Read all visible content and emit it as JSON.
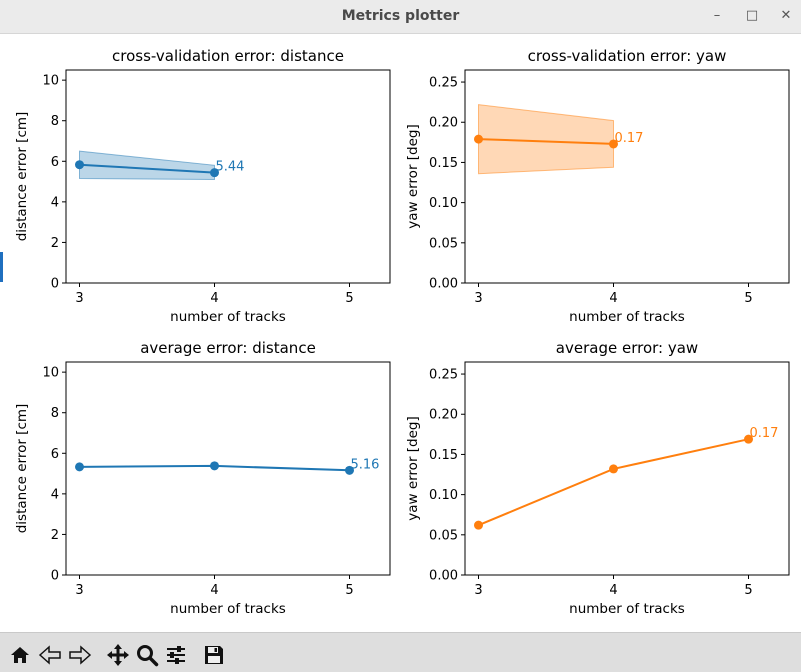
{
  "window": {
    "title": "Metrics plotter",
    "controls": {
      "minimize": "–",
      "maximize": "□",
      "close": "✕"
    }
  },
  "toolbar": {
    "buttons": [
      {
        "name": "home-button",
        "icon": "home-icon"
      },
      {
        "name": "back-button",
        "icon": "back-arrow-icon"
      },
      {
        "name": "forward-button",
        "icon": "forward-arrow-icon"
      },
      {
        "name": "pan-button",
        "icon": "move-icon"
      },
      {
        "name": "zoom-button",
        "icon": "magnifier-icon"
      },
      {
        "name": "configure-subplots-button",
        "icon": "sliders-icon"
      },
      {
        "name": "save-button",
        "icon": "floppy-disk-icon"
      }
    ]
  },
  "chart_data": [
    {
      "type": "line",
      "title": "cross-validation error: distance",
      "xlabel": "number of tracks",
      "ylabel": "distance error [cm]",
      "x": [
        3,
        4
      ],
      "xticks": [
        "3",
        "4",
        "5"
      ],
      "xlim": [
        2.9,
        5.3
      ],
      "ylim": [
        0,
        10.5
      ],
      "yticks": [
        "0",
        "2",
        "4",
        "6",
        "8",
        "10"
      ],
      "color": "#1f77b4",
      "series": [
        {
          "values": [
            5.83,
            5.44
          ],
          "band_low": [
            5.15,
            5.1
          ],
          "band_high": [
            6.5,
            5.8
          ]
        }
      ],
      "annotation": "5.44"
    },
    {
      "type": "line",
      "title": "cross-validation error: yaw",
      "xlabel": "number of tracks",
      "ylabel": "yaw error [deg]",
      "x": [
        3,
        4
      ],
      "xticks": [
        "3",
        "4",
        "5"
      ],
      "xlim": [
        2.9,
        5.3
      ],
      "ylim": [
        0,
        0.265
      ],
      "yticks": [
        "0.00",
        "0.05",
        "0.10",
        "0.15",
        "0.20",
        "0.25"
      ],
      "color": "#ff7f0e",
      "series": [
        {
          "values": [
            0.179,
            0.173
          ],
          "band_low": [
            0.136,
            0.144
          ],
          "band_high": [
            0.222,
            0.202
          ]
        }
      ],
      "annotation": "0.17"
    },
    {
      "type": "line",
      "title": "average error: distance",
      "xlabel": "number of tracks",
      "ylabel": "distance error [cm]",
      "x": [
        3,
        4,
        5
      ],
      "xticks": [
        "3",
        "4",
        "5"
      ],
      "xlim": [
        2.9,
        5.3
      ],
      "ylim": [
        0,
        10.5
      ],
      "yticks": [
        "0",
        "2",
        "4",
        "6",
        "8",
        "10"
      ],
      "color": "#1f77b4",
      "series": [
        {
          "values": [
            5.33,
            5.38,
            5.16
          ]
        }
      ],
      "annotation": "5.16"
    },
    {
      "type": "line",
      "title": "average error: yaw",
      "xlabel": "number of tracks",
      "ylabel": "yaw error [deg]",
      "x": [
        3,
        4,
        5
      ],
      "xticks": [
        "3",
        "4",
        "5"
      ],
      "xlim": [
        2.9,
        5.3
      ],
      "ylim": [
        0,
        0.265
      ],
      "yticks": [
        "0.00",
        "0.05",
        "0.10",
        "0.15",
        "0.20",
        "0.25"
      ],
      "color": "#ff7f0e",
      "series": [
        {
          "values": [
            0.062,
            0.132,
            0.169
          ]
        }
      ],
      "annotation": "0.17"
    }
  ]
}
